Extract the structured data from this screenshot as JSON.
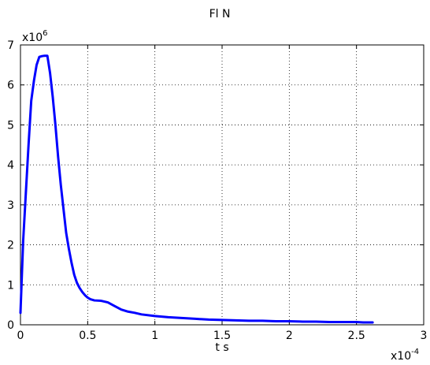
{
  "chart_data": {
    "type": "line",
    "title": "Fl N",
    "xlabel": "t s",
    "ylabel": "",
    "xlim": [
      0,
      3
    ],
    "ylim": [
      0,
      7
    ],
    "x_multiplier": "x10",
    "x_multiplier_exp": "-4",
    "y_multiplier": "x10",
    "y_multiplier_exp": "6",
    "x_ticks": [
      "0",
      "0.5",
      "1",
      "1.5",
      "2",
      "2.5",
      "3"
    ],
    "y_ticks": [
      "0",
      "1",
      "2",
      "3",
      "4",
      "5",
      "6",
      "7"
    ],
    "grid": true,
    "line_color": "#0000ff",
    "series": [
      {
        "x": [
          0,
          0.02,
          0.04,
          0.06,
          0.08,
          0.1,
          0.12,
          0.14,
          0.16,
          0.18,
          0.2,
          0.22,
          0.24,
          0.26,
          0.28,
          0.3,
          0.32,
          0.34,
          0.36,
          0.38,
          0.4,
          0.42,
          0.44,
          0.46,
          0.48,
          0.5,
          0.52,
          0.55,
          0.6,
          0.65,
          0.7,
          0.75,
          0.8,
          0.85,
          0.9,
          1.0,
          1.1,
          1.2,
          1.3,
          1.4,
          1.5,
          1.6,
          1.7,
          1.8,
          1.9,
          2.0,
          2.1,
          2.2,
          2.3,
          2.4,
          2.5,
          2.55,
          2.6,
          2.62
        ],
        "y": [
          0.3,
          2.1,
          3.3,
          4.5,
          5.6,
          6.1,
          6.5,
          6.7,
          6.72,
          6.73,
          6.73,
          6.3,
          5.7,
          5.0,
          4.2,
          3.5,
          2.9,
          2.3,
          1.9,
          1.55,
          1.25,
          1.05,
          0.92,
          0.82,
          0.74,
          0.68,
          0.64,
          0.61,
          0.6,
          0.56,
          0.47,
          0.38,
          0.33,
          0.3,
          0.26,
          0.22,
          0.19,
          0.17,
          0.15,
          0.13,
          0.12,
          0.11,
          0.1,
          0.1,
          0.09,
          0.09,
          0.08,
          0.08,
          0.07,
          0.07,
          0.07,
          0.06,
          0.06,
          0.06
        ]
      }
    ]
  }
}
